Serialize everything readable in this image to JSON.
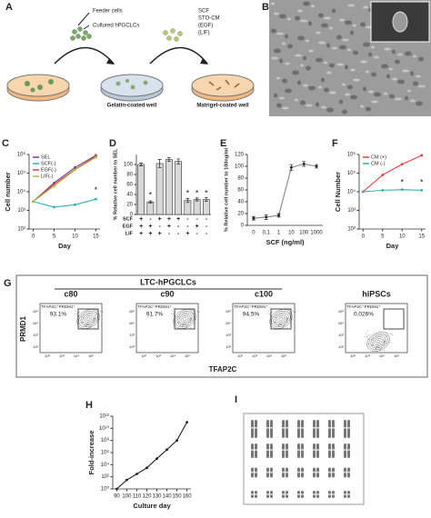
{
  "panel_a": {
    "label": "A",
    "feeder": "Feeder cells",
    "cultured": "Cultured hPGCLCs",
    "gelatin": "Gelatin-coated well",
    "factors": [
      "SCF",
      "STO-CM",
      "(EGF)",
      "(LIF)"
    ],
    "matrigel": "Matrigel-coated well"
  },
  "panel_b": {
    "label": "B"
  },
  "chart_data": [
    {
      "label": "C",
      "type": "line",
      "x": [
        0,
        5,
        10,
        15
      ],
      "xlim": [
        -1,
        16
      ],
      "xticks": [
        0,
        5,
        10,
        15
      ],
      "x_label": "Day",
      "y_label": "Cell number",
      "ylog": true,
      "ylim": [
        100,
        1000000
      ],
      "yticks": [
        {
          "value": 100,
          "label": "10²"
        },
        {
          "value": 1000,
          "label": "10³"
        },
        {
          "value": 10000,
          "label": "10⁴"
        },
        {
          "value": 100000,
          "label": "10⁵"
        },
        {
          "value": 1000000,
          "label": "10⁶"
        }
      ],
      "legend": "upper left",
      "series": [
        {
          "name": "SEL",
          "color": "#7040a0",
          "values": [
            3000,
            30000,
            200000,
            900000
          ]
        },
        {
          "name": "SCF(-)",
          "color": "#30b0b0",
          "values": [
            3000,
            1500,
            2000,
            4000
          ]
        },
        {
          "name": "EGF(-)",
          "color": "#e04040",
          "values": [
            3000,
            25000,
            160000,
            800000
          ]
        },
        {
          "name": "LIF(-)",
          "color": "#a8c040",
          "values": [
            3000,
            20000,
            150000,
            700000
          ]
        }
      ],
      "annotations": [
        {
          "text": "*",
          "x": 15,
          "y": 12000
        }
      ]
    },
    {
      "label": "D",
      "type": "bar",
      "categories": [
        null,
        null,
        null,
        null,
        null,
        null,
        null,
        null
      ],
      "values": [
        100,
        25,
        102,
        110,
        106,
        28,
        30,
        30
      ],
      "errors": [
        3,
        2,
        8,
        4,
        5,
        4,
        3,
        4
      ],
      "color": "#d8d8d8",
      "ylim": [
        0,
        120
      ],
      "yticks": [
        0,
        20,
        40,
        60,
        80,
        100
      ],
      "y_label": "% Relative cell number to SEL",
      "conditions": [
        {
          "name": "SCF",
          "values": [
            "+",
            "-",
            "+",
            "+",
            "+",
            "-",
            "-",
            "-"
          ]
        },
        {
          "name": "EGF",
          "values": [
            "+",
            "+",
            "-",
            "+",
            "-",
            "-",
            "+",
            "-"
          ]
        },
        {
          "name": "LIF",
          "values": [
            "+",
            "+",
            "+",
            "-",
            "-",
            "+",
            "-",
            "-"
          ]
        }
      ],
      "annotations": [
        {
          "text": "*",
          "x": 1,
          "y": 38
        },
        {
          "text": "*",
          "x": 5,
          "y": 42
        },
        {
          "text": "*",
          "x": 6,
          "y": 42
        },
        {
          "text": "*",
          "x": 7,
          "y": 42
        }
      ]
    },
    {
      "label": "E",
      "type": "line",
      "categories": [
        "0",
        "0.1",
        "1",
        "10",
        "100",
        "1000"
      ],
      "x_label": "SCF (ng/ml)",
      "y_label": "% Relative cell number to 100ng/ml",
      "ylim": [
        0,
        120
      ],
      "yticks": [
        0,
        20,
        40,
        60,
        80,
        100,
        120
      ],
      "series": [
        {
          "color": "#888888",
          "values": [
            12,
            14,
            17,
            98,
            104,
            100
          ],
          "errors": [
            3,
            4,
            3,
            5,
            4,
            3
          ]
        }
      ]
    },
    {
      "label": "F",
      "type": "line",
      "x": [
        0,
        5,
        10,
        15
      ],
      "xlim": [
        -1,
        16
      ],
      "xticks": [
        0,
        5,
        10,
        15
      ],
      "x_label": "Day",
      "y_label": "Cell Number",
      "ylog": true,
      "ylim": [
        100,
        1000000
      ],
      "yticks": [
        {
          "value": 100,
          "label": "10²"
        },
        {
          "value": 1000,
          "label": "10³"
        },
        {
          "value": 10000,
          "label": "10⁴"
        },
        {
          "value": 100000,
          "label": "10⁵"
        },
        {
          "value": 1000000,
          "label": "10⁶"
        }
      ],
      "legend": "upper left",
      "series": [
        {
          "name": "CM (+)",
          "color": "#e04040",
          "values": [
            10000,
            80000,
            300000,
            900000
          ]
        },
        {
          "name": "CM (-)",
          "color": "#30b0b0",
          "values": [
            10000,
            12000,
            13000,
            12000
          ]
        }
      ],
      "annotations": [
        {
          "text": "*",
          "x": 10,
          "y": 30000
        },
        {
          "text": "*",
          "x": 15,
          "y": 30000
        }
      ]
    },
    {
      "label": "H",
      "type": "line",
      "x": [
        90,
        100,
        110,
        120,
        130,
        140,
        150,
        160
      ],
      "xlim": [
        86,
        164
      ],
      "xticks": [
        90,
        100,
        110,
        120,
        130,
        140,
        150,
        160
      ],
      "x_label": "Culture day",
      "y_label": "Fold-increase",
      "ylog": true,
      "ylim": [
        1,
        1000000000000
      ],
      "yticks": [
        {
          "value": 1,
          "label": "10⁰"
        },
        {
          "value": 100,
          "label": "10²"
        },
        {
          "value": 10000,
          "label": "10⁴"
        },
        {
          "value": 1000000,
          "label": "10⁶"
        },
        {
          "value": 100000000,
          "label": "10⁸"
        },
        {
          "value": 10000000000,
          "label": "10¹⁰"
        },
        {
          "value": 1000000000000,
          "label": "10¹²"
        }
      ],
      "series": [
        {
          "color": "#222222",
          "values": [
            1,
            30,
            300,
            3000,
            100000,
            3000000,
            100000000,
            100000000000
          ]
        }
      ]
    }
  ],
  "panel_g": {
    "label": "G",
    "title": "LTC-hPGCLCs",
    "y_label": "PRMD1",
    "x_label": "TFAP2C",
    "ticks": [
      "10²",
      "10³",
      "10⁴",
      "10⁵"
    ],
    "plots": [
      {
        "title": "c80",
        "gate": "TFAP2C⁺PRDM1⁺",
        "percent": "93.1%"
      },
      {
        "title": "c90",
        "gate": "TFAP2C⁺PRDM1⁺",
        "percent": "91.7%"
      },
      {
        "title": "c100",
        "gate": "TFAP2C⁺PRDM1⁺",
        "percent": "94.5%"
      },
      {
        "title": "hiPSCs",
        "gate": "TFAP2C⁺PRDM1⁺",
        "percent": "0.026%"
      }
    ]
  },
  "panel_i": {
    "label": "I"
  }
}
